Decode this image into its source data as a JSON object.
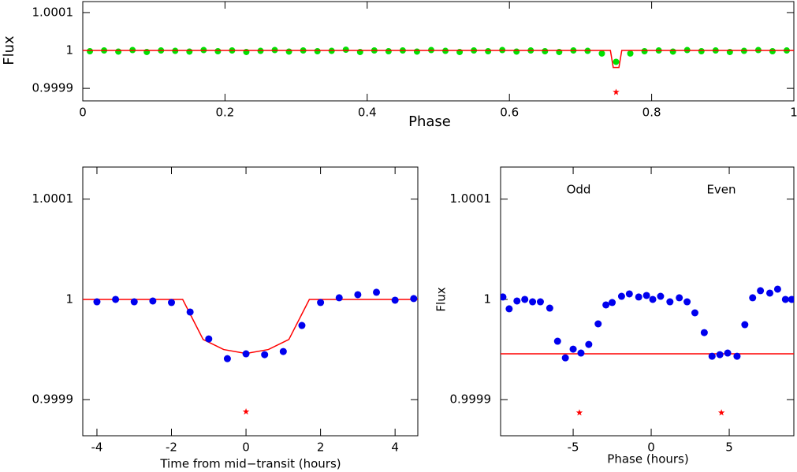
{
  "chart_data": [
    {
      "type": "scatter",
      "xlabel": "Phase",
      "ylabel": "Flux",
      "xlim": [
        0,
        1
      ],
      "ylim": [
        0.999867,
        1.000129
      ],
      "xticks": [
        0,
        0.2,
        0.4,
        0.6,
        0.8,
        1
      ],
      "yticks": [
        0.9999,
        1,
        1.0001
      ],
      "series": [
        {
          "marker": "circle",
          "color": "#00e000",
          "x": [
            0.01,
            0.03,
            0.05,
            0.07,
            0.09,
            0.11,
            0.13,
            0.15,
            0.17,
            0.19,
            0.21,
            0.23,
            0.25,
            0.27,
            0.29,
            0.31,
            0.33,
            0.35,
            0.37,
            0.39,
            0.41,
            0.43,
            0.45,
            0.47,
            0.49,
            0.51,
            0.53,
            0.55,
            0.57,
            0.59,
            0.61,
            0.63,
            0.65,
            0.67,
            0.69,
            0.71,
            0.73,
            0.75,
            0.77,
            0.79,
            0.81,
            0.83,
            0.85,
            0.87,
            0.89,
            0.91,
            0.93,
            0.95,
            0.97,
            0.99
          ],
          "values": [
            0.999998,
            1,
            0.999997,
            1.000001,
            0.999996,
            1,
            0.999999,
            0.999997,
            1.000001,
            0.999998,
            1,
            0.999996,
            0.999999,
            1.000001,
            0.999997,
            1,
            0.999998,
            0.999999,
            1.000002,
            0.999996,
            1,
            0.999998,
            1,
            0.999997,
            1.000001,
            0.999999,
            0.999996,
            1,
            0.999998,
            1.000001,
            0.999997,
            1,
            0.999998,
            0.999996,
            1,
            0.999999,
            0.999992,
            0.99997,
            0.999992,
            0.999998,
            1,
            0.999997,
            1.000001,
            0.999998,
            1,
            0.999996,
            0.999999,
            1.000001,
            0.999998,
            1
          ]
        },
        {
          "marker": "line",
          "color": "#ff0000",
          "x": [
            0,
            0.742,
            0.746,
            0.754,
            0.758,
            1
          ],
          "values": [
            1,
            1,
            0.999955,
            0.999955,
            1,
            1
          ]
        },
        {
          "marker": "star",
          "color": "#ff0000",
          "x": [
            0.75
          ],
          "values": [
            0.99989
          ]
        }
      ]
    },
    {
      "type": "scatter",
      "xlabel": "Time from mid−transit (hours)",
      "xlim": [
        -4.38,
        4.61
      ],
      "ylim": [
        0.999864,
        1.000132
      ],
      "xticks": [
        -4,
        -2,
        0,
        2,
        4
      ],
      "yticks": [
        0.9999,
        1,
        1.0001
      ],
      "series": [
        {
          "marker": "line",
          "color": "#ff0000",
          "x": [
            -4.38,
            -1.7,
            -1.15,
            -0.6,
            0,
            0.6,
            1.15,
            1.7,
            4.61
          ],
          "values": [
            1,
            1,
            0.99996,
            0.99995,
            0.999946,
            0.99995,
            0.99996,
            1,
            1
          ]
        },
        {
          "marker": "circle",
          "color": "#0000ee",
          "x": [
            -4,
            -3.5,
            -3,
            -2.5,
            -2,
            -1.5,
            -1,
            -0.5,
            0,
            0.5,
            1,
            1.5,
            2,
            2.5,
            3,
            3.5,
            4,
            4.5
          ],
          "values": [
            0.9999976,
            1,
            0.9999976,
            0.9999984,
            0.9999969,
            0.9999874,
            0.9999606,
            0.9999409,
            0.9999457,
            0.9999449,
            0.999948,
            0.999974,
            0.9999969,
            1.0000016,
            1.0000047,
            1.0000071,
            0.9999992,
            1.0000008
          ]
        },
        {
          "marker": "star",
          "color": "#ff0000",
          "x": [
            0
          ],
          "values": [
            0.999888
          ]
        }
      ]
    },
    {
      "type": "scatter",
      "xlabel": "Phase (hours)",
      "ylabel": "Flux",
      "annotations": [
        "Odd",
        "Even"
      ],
      "xlim": [
        -9.65,
        9.14
      ],
      "ylim": [
        0.999864,
        1.000132
      ],
      "xticks": [
        -5,
        0,
        5
      ],
      "yticks": [
        0.9999,
        1,
        1.0001
      ],
      "series": [
        {
          "marker": "line",
          "color": "#ff0000",
          "x": [
            -9.65,
            9.14
          ],
          "values": [
            0.9999457,
            0.9999457
          ]
        },
        {
          "marker": "circle",
          "color": "#0000ee",
          "x": [
            -9.5,
            -9.1,
            -8.6,
            -8.1,
            -7.6,
            -7.1,
            -6.5,
            -6,
            -5.5,
            -5,
            -4.5,
            -4,
            -3.4,
            -2.9,
            -2.5,
            -1.9,
            -1.4,
            -0.8,
            -0.3,
            0.1,
            0.6,
            1.2,
            1.8,
            2.3,
            2.8,
            3.4,
            3.9,
            4.4,
            4.9,
            5.5,
            6,
            6.5,
            7,
            7.6,
            8.1,
            8.6,
            9
          ],
          "values": [
            1.0000024,
            0.9999906,
            0.9999984,
            1,
            0.9999976,
            0.9999976,
            0.9999913,
            0.9999583,
            0.9999417,
            0.9999504,
            0.9999465,
            0.9999551,
            0.9999756,
            0.9999945,
            0.9999969,
            1.0000031,
            1.0000055,
            1.0000024,
            1.0000039,
            1,
            1.0000031,
            0.9999976,
            1.0000016,
            0.9999976,
            0.9999866,
            0.9999669,
            0.9999433,
            0.9999449,
            0.9999465,
            0.9999433,
            0.9999748,
            1.0000016,
            1.0000087,
            1.0000063,
            1.0000102,
            1,
            1
          ]
        },
        {
          "marker": "star",
          "color": "#ff0000",
          "x": [
            -4.6,
            4.5
          ],
          "values": [
            0.999887,
            0.999887
          ]
        }
      ]
    }
  ]
}
